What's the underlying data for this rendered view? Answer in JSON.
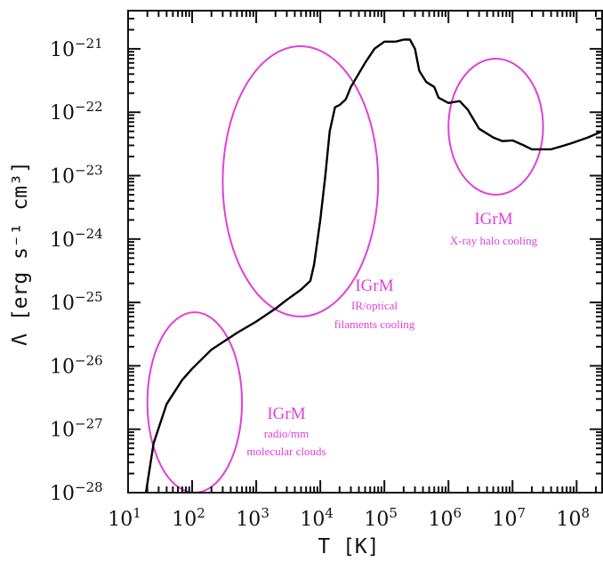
{
  "chart_data": {
    "type": "line",
    "xlabel": "T   [K]",
    "ylabel": "Λ [erg s⁻¹ cm³]",
    "x_scale": "log",
    "y_scale": "log",
    "xlim": [
      10,
      250000000
    ],
    "ylim": [
      1e-28,
      4e-21
    ],
    "x_ticks": [
      {
        "value": 10,
        "mant": "10",
        "exp": "1"
      },
      {
        "value": 100,
        "mant": "10",
        "exp": "2"
      },
      {
        "value": 1000,
        "mant": "10",
        "exp": "3"
      },
      {
        "value": 10000,
        "mant": "10",
        "exp": "4"
      },
      {
        "value": 100000,
        "mant": "10",
        "exp": "5"
      },
      {
        "value": 1000000,
        "mant": "10",
        "exp": "6"
      },
      {
        "value": 10000000,
        "mant": "10",
        "exp": "7"
      },
      {
        "value": 100000000,
        "mant": "10",
        "exp": "8"
      }
    ],
    "y_ticks": [
      {
        "value": 1e-28,
        "mant": "10",
        "exp": "−28"
      },
      {
        "value": 1e-27,
        "mant": "10",
        "exp": "−27"
      },
      {
        "value": 1e-26,
        "mant": "10",
        "exp": "−26"
      },
      {
        "value": 1e-25,
        "mant": "10",
        "exp": "−25"
      },
      {
        "value": 1e-24,
        "mant": "10",
        "exp": "−24"
      },
      {
        "value": 1e-23,
        "mant": "10",
        "exp": "−23"
      },
      {
        "value": 1e-22,
        "mant": "10",
        "exp": "−22"
      },
      {
        "value": 1e-21,
        "mant": "10",
        "exp": "−21"
      }
    ],
    "series": [
      {
        "color": "#000000",
        "points": [
          [
            19,
            1e-28
          ],
          [
            25,
            6e-28
          ],
          [
            40,
            2.5e-27
          ],
          [
            70,
            6e-27
          ],
          [
            100,
            9e-27
          ],
          [
            200,
            1.8e-26
          ],
          [
            500,
            3.3e-26
          ],
          [
            1000,
            5e-26
          ],
          [
            2000,
            8e-26
          ],
          [
            3000,
            1.1e-25
          ],
          [
            5000,
            1.6e-25
          ],
          [
            7000,
            2.2e-25
          ],
          [
            8000,
            4e-25
          ],
          [
            10000,
            2e-24
          ],
          [
            12000,
            1e-23
          ],
          [
            14000,
            5e-23
          ],
          [
            17000,
            1.2e-22
          ],
          [
            20000,
            1.3e-22
          ],
          [
            25000,
            1.6e-22
          ],
          [
            30000,
            2.5e-22
          ],
          [
            50000,
            6e-22
          ],
          [
            70000,
            1e-21
          ],
          [
            100000,
            1.3e-21
          ],
          [
            150000,
            1.3e-21
          ],
          [
            200000,
            1.4e-21
          ],
          [
            250000,
            1.4e-21
          ],
          [
            300000,
            1e-21
          ],
          [
            350000,
            4.5e-22
          ],
          [
            450000,
            3e-22
          ],
          [
            600000,
            2.5e-22
          ],
          [
            700000,
            1.7e-22
          ],
          [
            1000000,
            1.4e-22
          ],
          [
            1500000,
            1.5e-22
          ],
          [
            2000000,
            1.1e-22
          ],
          [
            3000000,
            5.5e-23
          ],
          [
            5000000,
            4e-23
          ],
          [
            7000000,
            3.5e-23
          ],
          [
            10000000,
            3.6e-23
          ],
          [
            15000000,
            3e-23
          ],
          [
            20000000,
            2.6e-23
          ],
          [
            40000000,
            2.6e-23
          ],
          [
            80000000,
            3.2e-23
          ],
          [
            150000000,
            4e-23
          ],
          [
            250000000,
            5e-23
          ]
        ]
      }
    ],
    "annotations": [
      {
        "title": "IGrM",
        "lines": [
          "radio/mm",
          "molecular clouds"
        ],
        "color": "#e040d8"
      },
      {
        "title": "IGrM",
        "lines": [
          "IR/optical",
          "filaments cooling"
        ],
        "color": "#e040d8"
      },
      {
        "title": "IGrM",
        "lines": [
          "X-ray halo cooling"
        ],
        "color": "#e040d8"
      }
    ],
    "regions": [
      {
        "name": "radio-region-ellipse",
        "x_center": 110,
        "y_center": 3.5e-27,
        "x_span": [
          20,
          600
        ],
        "y_span": [
          1e-28,
          7e-26
        ],
        "color": "#e040d8"
      },
      {
        "name": "ir-region-ellipse",
        "x_center": 5000,
        "y_center": 1e-23,
        "x_span": [
          300,
          80000
        ],
        "y_span": [
          6e-26,
          1.1e-21
        ],
        "color": "#e040d8"
      },
      {
        "name": "xray-region-ellipse",
        "x_center": 5500000,
        "y_center": 6e-23,
        "x_span": [
          1000000,
          30000000
        ],
        "y_span": [
          5e-24,
          7e-22
        ],
        "color": "#e040d8"
      }
    ],
    "grid": false,
    "legend": "none"
  }
}
